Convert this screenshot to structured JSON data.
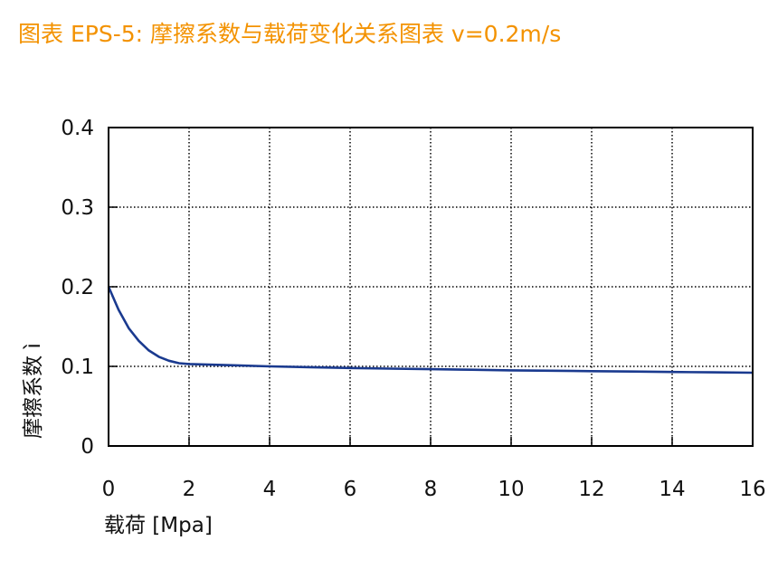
{
  "title": "图表 EPS-5: 摩擦系数与载荷变化关系图表 v=0.2m/s",
  "colors": {
    "title": "#f39200",
    "line": "#1a3a8f",
    "axis": "#000000",
    "grid": "#000000"
  },
  "chart_data": {
    "type": "line",
    "title": "图表 EPS-5: 摩擦系数与载荷变化关系图表 v=0.2m/s",
    "xlabel": "载荷 [Mpa]",
    "ylabel": "摩擦系数 ì",
    "xlim": [
      0,
      16
    ],
    "ylim": [
      0,
      0.4
    ],
    "x_ticks": [
      0,
      2,
      4,
      6,
      8,
      10,
      12,
      14,
      16
    ],
    "y_ticks": [
      0,
      0.1,
      0.2,
      0.3,
      0.4
    ],
    "x_tick_labels": [
      "0",
      "2",
      "4",
      "6",
      "8",
      "10",
      "12",
      "14",
      "16"
    ],
    "y_tick_labels": [
      "0",
      "0.1",
      "0.2",
      "0.3",
      "0.4"
    ],
    "grid": true,
    "grid_style": "dotted",
    "series": [
      {
        "x": [
          0,
          0.25,
          0.5,
          0.75,
          1.0,
          1.25,
          1.5,
          1.75,
          2,
          3,
          4,
          5,
          6,
          7,
          8,
          9,
          10,
          11,
          12,
          13,
          14,
          15,
          16
        ],
        "y": [
          0.2,
          0.171,
          0.148,
          0.132,
          0.12,
          0.112,
          0.107,
          0.104,
          0.103,
          0.1015,
          0.1,
          0.099,
          0.098,
          0.0972,
          0.0965,
          0.0958,
          0.095,
          0.0945,
          0.094,
          0.0935,
          0.093,
          0.0925,
          0.092
        ]
      }
    ]
  }
}
